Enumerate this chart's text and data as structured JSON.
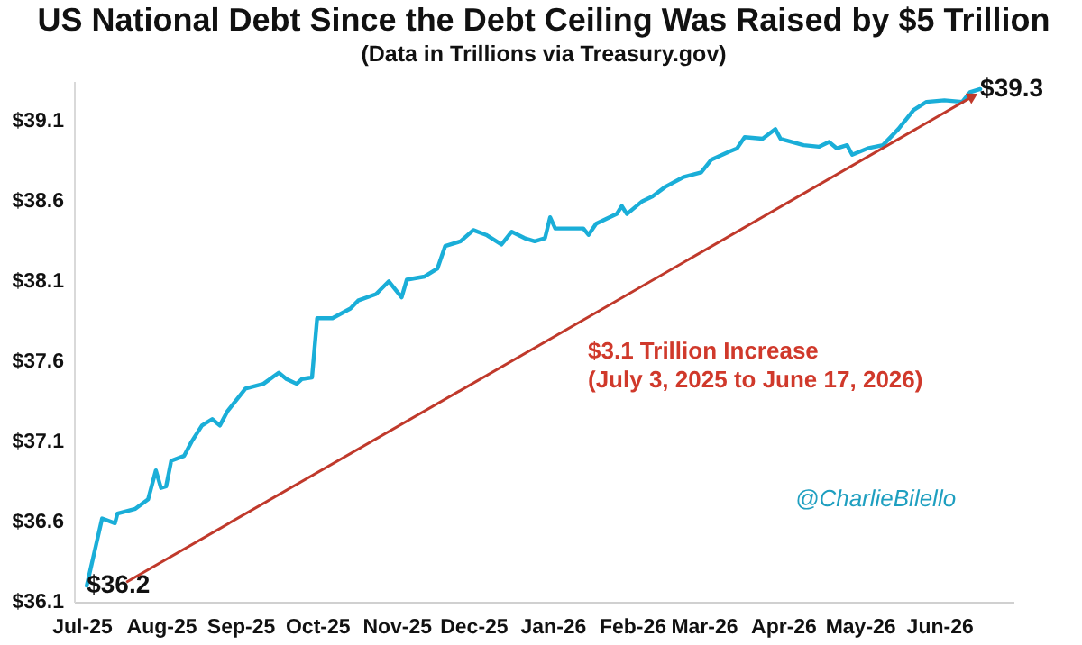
{
  "chart_data": {
    "type": "line",
    "title": "US National Debt Since the Debt Ceiling Was Raised by $5 Trillion",
    "subtitle": "(Data in Trillions via Treasury.gov)",
    "annotations": [
      "$3.1 Trillion Increase",
      "(July 3, 2025 to June 17, 2026)",
      "@CharlieBilello"
    ],
    "x": [
      "2025-07-03",
      "2025-07-09",
      "2025-07-14",
      "2025-07-15",
      "2025-07-22",
      "2025-07-27",
      "2025-07-30",
      "2025-08-01",
      "2025-08-03",
      "2025-08-05",
      "2025-08-10",
      "2025-08-13",
      "2025-08-17",
      "2025-08-21",
      "2025-08-24",
      "2025-08-27",
      "2025-09-03",
      "2025-09-10",
      "2025-09-16",
      "2025-09-19",
      "2025-09-23",
      "2025-09-25",
      "2025-09-29",
      "2025-10-01",
      "2025-10-07",
      "2025-10-14",
      "2025-10-17",
      "2025-10-24",
      "2025-10-29",
      "2025-11-03",
      "2025-11-05",
      "2025-11-12",
      "2025-11-17",
      "2025-11-20",
      "2025-11-26",
      "2025-12-01",
      "2025-12-06",
      "2025-12-12",
      "2025-12-16",
      "2025-12-21",
      "2025-12-25",
      "2025-12-29",
      "2025-12-31",
      "2026-01-02",
      "2026-01-13",
      "2026-01-15",
      "2026-01-18",
      "2026-01-26",
      "2026-01-28",
      "2026-01-30",
      "2026-02-05",
      "2026-02-09",
      "2026-02-14",
      "2026-02-21",
      "2026-02-28",
      "2026-03-04",
      "2026-03-11",
      "2026-03-14",
      "2026-03-17",
      "2026-03-24",
      "2026-03-29",
      "2026-03-31",
      "2026-04-09",
      "2026-04-15",
      "2026-04-19",
      "2026-04-22",
      "2026-04-26",
      "2026-04-28",
      "2026-05-04",
      "2026-05-10",
      "2026-05-16",
      "2026-05-22",
      "2026-05-27",
      "2026-06-03",
      "2026-06-10",
      "2026-06-13",
      "2026-06-17"
    ],
    "series": [
      {
        "color": "#1aaed8",
        "values": [
          36.2,
          36.62,
          36.59,
          36.65,
          36.68,
          36.74,
          36.92,
          36.81,
          36.82,
          36.98,
          37.01,
          37.1,
          37.2,
          37.24,
          37.2,
          37.29,
          37.43,
          37.46,
          37.53,
          37.49,
          37.46,
          37.49,
          37.5,
          37.87,
          37.87,
          37.93,
          37.98,
          38.02,
          38.1,
          38.0,
          38.11,
          38.13,
          38.18,
          38.32,
          38.35,
          38.42,
          38.39,
          38.33,
          38.41,
          38.37,
          38.35,
          38.37,
          38.5,
          38.43,
          38.43,
          38.39,
          38.46,
          38.52,
          38.57,
          38.52,
          38.6,
          38.63,
          38.69,
          38.75,
          38.78,
          38.86,
          38.91,
          38.93,
          39.0,
          38.99,
          39.05,
          38.99,
          38.95,
          38.94,
          38.97,
          38.93,
          38.95,
          38.89,
          38.93,
          38.95,
          39.05,
          39.17,
          39.22,
          39.23,
          39.22,
          39.28,
          39.3
        ],
        "value_labels": [
          "$36.2",
          null,
          null,
          null,
          null,
          null,
          null,
          null,
          null,
          null,
          null,
          null,
          null,
          null,
          null,
          null,
          null,
          null,
          null,
          null,
          null,
          null,
          null,
          null,
          null,
          null,
          null,
          null,
          null,
          null,
          null,
          null,
          null,
          null,
          null,
          null,
          null,
          null,
          null,
          null,
          null,
          null,
          null,
          null,
          null,
          null,
          null,
          null,
          null,
          null,
          null,
          null,
          null,
          null,
          null,
          null,
          null,
          null,
          null,
          null,
          null,
          null,
          null,
          null,
          null,
          null,
          null,
          null,
          null,
          null,
          null,
          null,
          null,
          null,
          null,
          null,
          "$39.3"
        ]
      }
    ],
    "xlim": [
      "2025-06-28",
      "2026-06-30"
    ],
    "xticks": [
      {
        "value": "2025-07-01",
        "label": "Jul-25"
      },
      {
        "value": "2025-08-01",
        "label": "Aug-25"
      },
      {
        "value": "2025-09-01",
        "label": "Sep-25"
      },
      {
        "value": "2025-10-01",
        "label": "Oct-25"
      },
      {
        "value": "2025-11-01",
        "label": "Nov-25"
      },
      {
        "value": "2025-12-01",
        "label": "Dec-25"
      },
      {
        "value": "2026-01-01",
        "label": "Jan-26"
      },
      {
        "value": "2026-02-01",
        "label": "Feb-26"
      },
      {
        "value": "2026-03-01",
        "label": "Mar-26"
      },
      {
        "value": "2026-04-01",
        "label": "Apr-26"
      },
      {
        "value": "2026-05-01",
        "label": "May-26"
      },
      {
        "value": "2026-06-01",
        "label": "Jun-26"
      }
    ],
    "ylim": [
      36.1,
      39.35
    ],
    "yticks": [
      {
        "value": 36.1,
        "label": "$36.1"
      },
      {
        "value": 36.6,
        "label": "$36.6"
      },
      {
        "value": 37.1,
        "label": "$37.1"
      },
      {
        "value": 37.6,
        "label": "$37.6"
      },
      {
        "value": 38.1,
        "label": "$38.1"
      },
      {
        "value": 38.6,
        "label": "$38.6"
      },
      {
        "value": 39.1,
        "label": "$39.1"
      }
    ],
    "grid": false
  }
}
